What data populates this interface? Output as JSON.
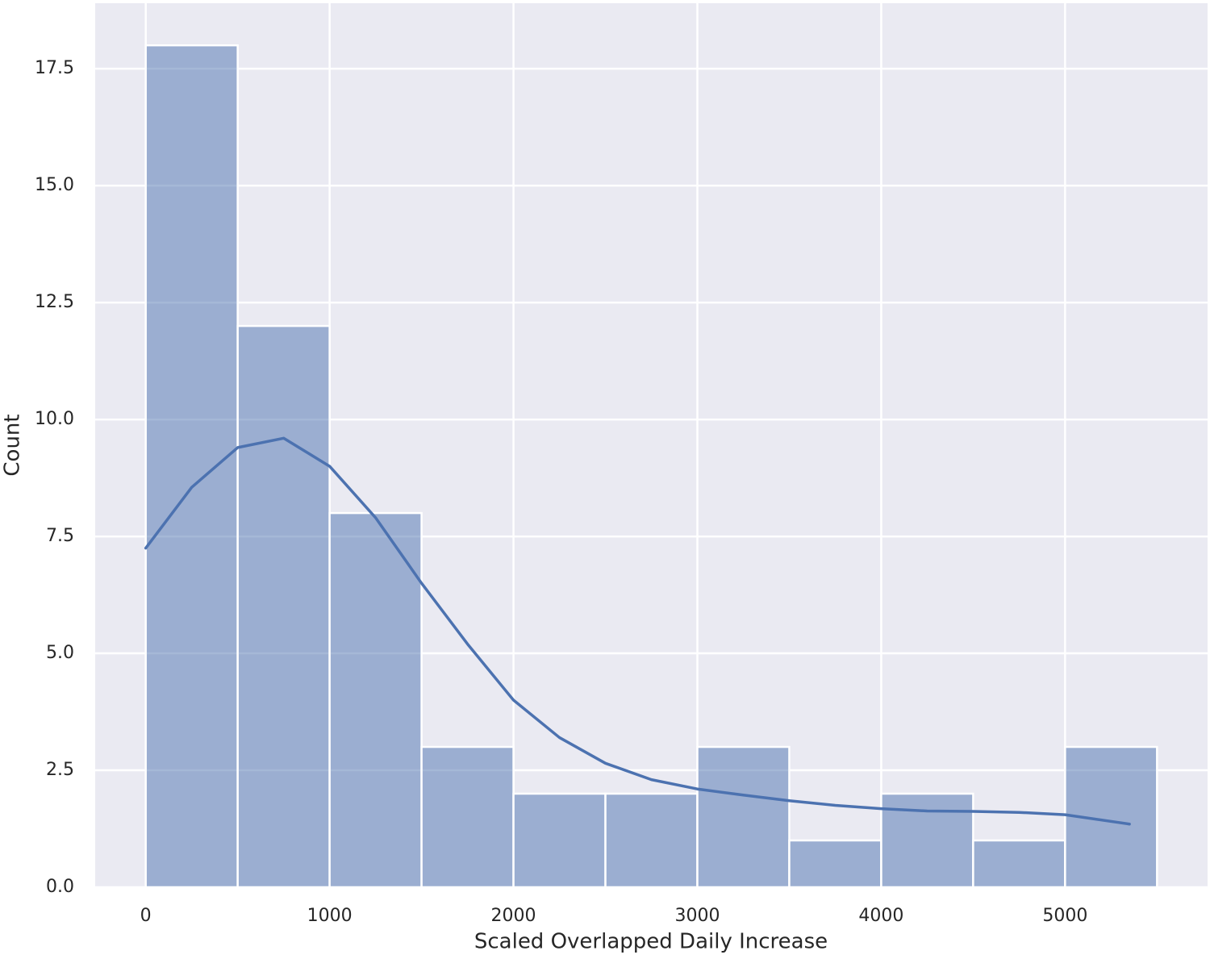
{
  "chart_data": {
    "type": "histogram",
    "xlabel": "Scaled Overlapped Daily Increase",
    "ylabel": "Count",
    "bins": [
      0,
      500,
      1000,
      1500,
      2000,
      2500,
      3000,
      3500,
      4000,
      4500,
      5000,
      5500
    ],
    "counts": [
      18,
      12,
      8,
      3,
      2,
      2,
      3,
      1,
      2,
      1,
      3
    ],
    "color": "#4c72b0",
    "kde": {
      "x": [
        0,
        250,
        500,
        750,
        1000,
        1250,
        1500,
        1750,
        2000,
        2250,
        2500,
        2750,
        3000,
        3250,
        3500,
        3750,
        4000,
        4250,
        4500,
        4750,
        5000,
        5350
      ],
      "values": [
        7.25,
        8.55,
        9.4,
        9.6,
        9.0,
        7.9,
        6.5,
        5.2,
        4.0,
        3.2,
        2.65,
        2.3,
        2.1,
        1.97,
        1.85,
        1.75,
        1.68,
        1.63,
        1.62,
        1.6,
        1.55,
        1.35
      ]
    },
    "xlim": [
      -275,
      5775
    ],
    "ylim": [
      0,
      18.9
    ],
    "xticks": [
      0,
      1000,
      2000,
      3000,
      4000,
      5000
    ],
    "yticks": [
      {
        "value": 0,
        "label": "0.0"
      },
      2.5,
      {
        "value": 5,
        "label": "5.0"
      },
      7.5,
      {
        "value": 10,
        "label": "10.0"
      },
      12.5,
      {
        "value": 15,
        "label": "15.0"
      },
      17.5
    ],
    "grid": true
  }
}
